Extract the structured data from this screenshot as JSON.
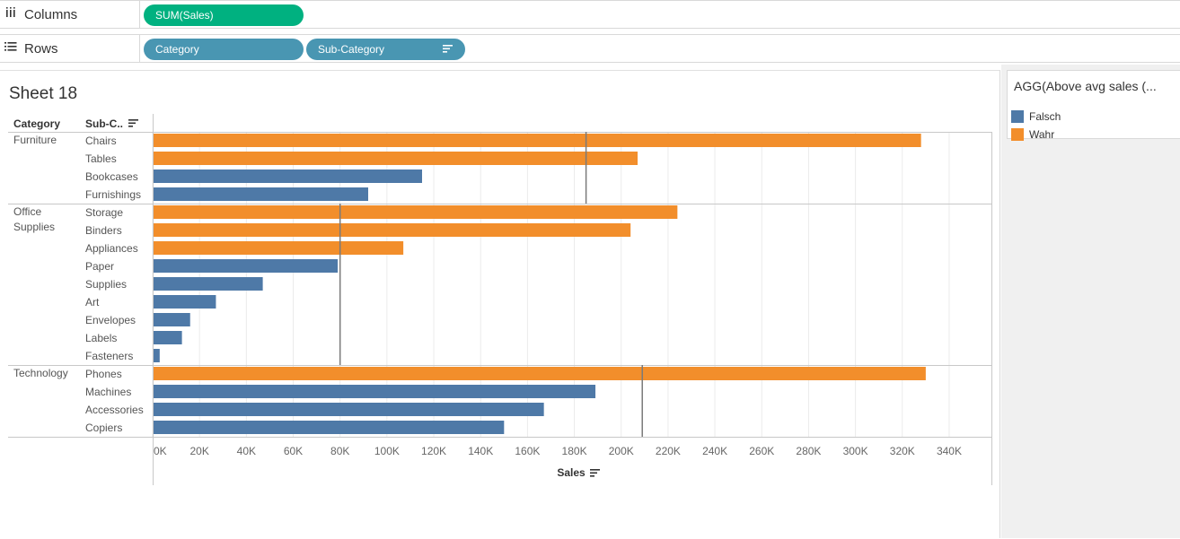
{
  "shelves": {
    "columns": {
      "label": "Columns",
      "icon": "columns-icon",
      "pills": [
        {
          "label": "SUM(Sales)",
          "color": "#00b180"
        }
      ]
    },
    "rows": {
      "label": "Rows",
      "icon": "rows-icon",
      "pills": [
        {
          "label": "Category",
          "color": "#4996b2"
        },
        {
          "label": "Sub-Category",
          "color": "#4996b2",
          "sorted": true
        }
      ]
    }
  },
  "sheet": {
    "title": "Sheet 18"
  },
  "headers": {
    "category": "Category",
    "subcategory": "Sub-C.."
  },
  "legend": {
    "title": "AGG(Above avg sales (...",
    "items": [
      {
        "label": "Falsch",
        "color": "#4e79a7"
      },
      {
        "label": "Wahr",
        "color": "#f28e2b"
      }
    ]
  },
  "colors": {
    "falsch": "#4e79a7",
    "wahr": "#f28e2b",
    "avg_line": "#7a7a7a",
    "grid": "#ebebeb"
  },
  "chart_data": {
    "type": "bar",
    "orientation": "horizontal",
    "xlabel": "Sales",
    "xlim": [
      0,
      345000
    ],
    "xticks": [
      0,
      20000,
      40000,
      60000,
      80000,
      100000,
      120000,
      140000,
      160000,
      180000,
      200000,
      220000,
      240000,
      260000,
      280000,
      300000,
      320000,
      340000
    ],
    "xtick_labels": [
      "0K",
      "20K",
      "40K",
      "60K",
      "80K",
      "100K",
      "120K",
      "140K",
      "160K",
      "180K",
      "200K",
      "220K",
      "240K",
      "260K",
      "280K",
      "300K",
      "320K",
      "340K"
    ],
    "legend_position": "right",
    "groups": [
      {
        "category_label": [
          "Furniture"
        ],
        "average": 185000,
        "rows": [
          {
            "name": "Chairs",
            "value": 328000,
            "above_avg": "Wahr"
          },
          {
            "name": "Tables",
            "value": 207000,
            "above_avg": "Wahr"
          },
          {
            "name": "Bookcases",
            "value": 115000,
            "above_avg": "Falsch"
          },
          {
            "name": "Furnishings",
            "value": 92000,
            "above_avg": "Falsch"
          }
        ]
      },
      {
        "category_label": [
          "Office",
          "Supplies"
        ],
        "average": 80000,
        "rows": [
          {
            "name": "Storage",
            "value": 224000,
            "above_avg": "Wahr"
          },
          {
            "name": "Binders",
            "value": 204000,
            "above_avg": "Wahr"
          },
          {
            "name": "Appliances",
            "value": 107000,
            "above_avg": "Wahr"
          },
          {
            "name": "Paper",
            "value": 79000,
            "above_avg": "Falsch"
          },
          {
            "name": "Supplies",
            "value": 47000,
            "above_avg": "Falsch"
          },
          {
            "name": "Art",
            "value": 27000,
            "above_avg": "Falsch"
          },
          {
            "name": "Envelopes",
            "value": 16000,
            "above_avg": "Falsch"
          },
          {
            "name": "Labels",
            "value": 12500,
            "above_avg": "Falsch"
          },
          {
            "name": "Fasteners",
            "value": 3000,
            "above_avg": "Falsch"
          }
        ]
      },
      {
        "category_label": [
          "Technology"
        ],
        "average": 209000,
        "rows": [
          {
            "name": "Phones",
            "value": 330000,
            "above_avg": "Wahr"
          },
          {
            "name": "Machines",
            "value": 189000,
            "above_avg": "Falsch"
          },
          {
            "name": "Accessories",
            "value": 167000,
            "above_avg": "Falsch"
          },
          {
            "name": "Copiers",
            "value": 150000,
            "above_avg": "Falsch"
          }
        ]
      }
    ]
  }
}
